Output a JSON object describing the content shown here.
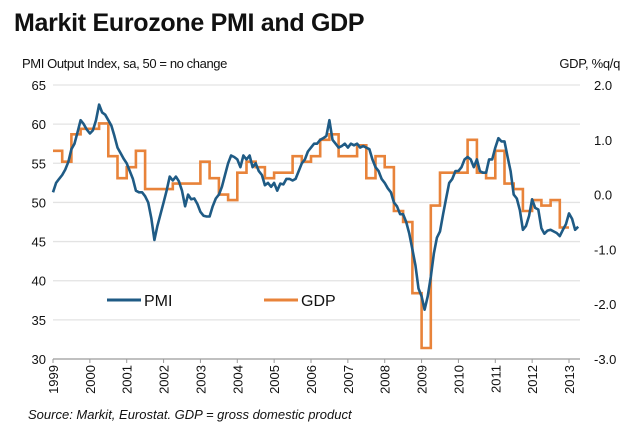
{
  "header": {
    "title": "Markit Eurozone PMI and GDP",
    "left_axis_caption": "PMI Output Index, sa, 50 = no change",
    "right_axis_caption": "GDP, %q/q"
  },
  "footer": {
    "source": "Source: Markit, Eurostat. GDP = gross domestic product"
  },
  "colors": {
    "pmi": "#1f5b85",
    "gdp": "#e8833a",
    "grid": "#e3e3e3",
    "axis": "#9a9a9a"
  },
  "chart_data": {
    "type": "line",
    "title": "Markit Eurozone PMI and GDP",
    "xlabel": "",
    "ylabel": "PMI Output Index, sa, 50 = no change",
    "y2label": "GDP, %q/q",
    "grid": true,
    "legend_position": "lower-left",
    "x_tick_labels": [
      "1999",
      "2000",
      "2001",
      "2002",
      "2003",
      "2004",
      "2005",
      "2006",
      "2007",
      "2008",
      "2009",
      "2010",
      "2011",
      "2012",
      "2013"
    ],
    "x_range": [
      1999.0,
      2013.3
    ],
    "y_left": {
      "range": [
        30,
        65
      ],
      "ticks": [
        "30",
        "35",
        "40",
        "45",
        "50",
        "55",
        "60",
        "65"
      ],
      "tick_values": [
        30,
        35,
        40,
        45,
        50,
        55,
        60,
        65
      ]
    },
    "y_right": {
      "range": [
        -3.0,
        2.0
      ],
      "ticks": [
        "-3.0",
        "-2.0",
        "-1.0",
        "0.0",
        "1.0",
        "2.0"
      ],
      "tick_values": [
        -3,
        -2,
        -1,
        0,
        1,
        2
      ]
    },
    "legend": [
      {
        "name": "PMI",
        "axis": "left"
      },
      {
        "name": "GDP",
        "axis": "right"
      }
    ],
    "series": [
      {
        "name": "PMI",
        "axis": "left",
        "frequency": "monthly",
        "start": "1999-01",
        "values": [
          51.3,
          52.5,
          53.0,
          53.5,
          54.2,
          55.2,
          56.8,
          57.5,
          59.0,
          60.5,
          60.0,
          59.3,
          58.8,
          59.2,
          60.5,
          62.5,
          61.5,
          61.2,
          60.5,
          59.8,
          58.5,
          57.0,
          56.3,
          55.6,
          55.0,
          54.0,
          53.0,
          51.5,
          51.3,
          51.3,
          50.8,
          50.0,
          48.0,
          45.2,
          47.0,
          48.5,
          50.0,
          51.5,
          53.3,
          52.8,
          53.3,
          52.7,
          51.5,
          49.5,
          51.0,
          50.4,
          50.5,
          49.8,
          48.8,
          48.3,
          48.2,
          48.2,
          49.5,
          50.5,
          51.0,
          52.0,
          53.5,
          55.0,
          56.0,
          55.8,
          55.5,
          54.5,
          56.0,
          55.5,
          56.0,
          54.5,
          55.0,
          54.0,
          53.5,
          52.2,
          52.5,
          52.0,
          52.5,
          51.5,
          52.4,
          52.3,
          53.0,
          53.0,
          52.8,
          53.0,
          54.0,
          55.0,
          55.5,
          56.5,
          57.0,
          57.5,
          57.5,
          58.0,
          58.2,
          58.5,
          60.5,
          58.0,
          57.5,
          57.0,
          57.2,
          57.5,
          57.0,
          57.5,
          57.3,
          57.5,
          57.0,
          57.2,
          57.0,
          56.8,
          55.5,
          54.5,
          54.0,
          53.0,
          52.5,
          51.8,
          51.3,
          50.0,
          49.5,
          48.5,
          48.5,
          47.5,
          46.0,
          44.0,
          42.0,
          39.0,
          38.0,
          36.3,
          38.0,
          40.5,
          43.5,
          45.5,
          46.3,
          48.5,
          50.5,
          52.5,
          53.0,
          54.0,
          54.0,
          54.5,
          55.5,
          55.8,
          55.5,
          54.5,
          55.5,
          54.0,
          53.8,
          53.8,
          55.5,
          55.5,
          57.0,
          58.2,
          57.8,
          57.8,
          55.8,
          54.0,
          51.0,
          50.5,
          49.0,
          46.5,
          47.0,
          48.3,
          50.4,
          49.3,
          49.1,
          46.7,
          46.0,
          46.4,
          46.5,
          46.3,
          46.1,
          45.7,
          46.5,
          47.2,
          48.6,
          47.9,
          46.5,
          46.9
        ]
      },
      {
        "name": "GDP",
        "axis": "right",
        "frequency": "quarterly",
        "start": "1999-Q1",
        "values": [
          0.8,
          0.6,
          1.1,
          1.2,
          1.2,
          1.3,
          0.7,
          0.3,
          0.5,
          0.8,
          0.1,
          0.1,
          0.1,
          0.2,
          0.2,
          0.2,
          0.6,
          0.3,
          0.0,
          -0.1,
          0.4,
          0.6,
          0.5,
          0.3,
          0.4,
          0.4,
          0.7,
          0.6,
          0.7,
          1.0,
          1.1,
          0.7,
          0.7,
          0.9,
          0.3,
          0.7,
          0.5,
          -0.3,
          -0.5,
          -1.8,
          -2.8,
          -0.2,
          0.4,
          0.4,
          0.4,
          1.0,
          0.4,
          0.3,
          0.8,
          0.2,
          0.1,
          -0.3,
          -0.1,
          -0.2,
          -0.1,
          -0.6
        ]
      }
    ]
  }
}
